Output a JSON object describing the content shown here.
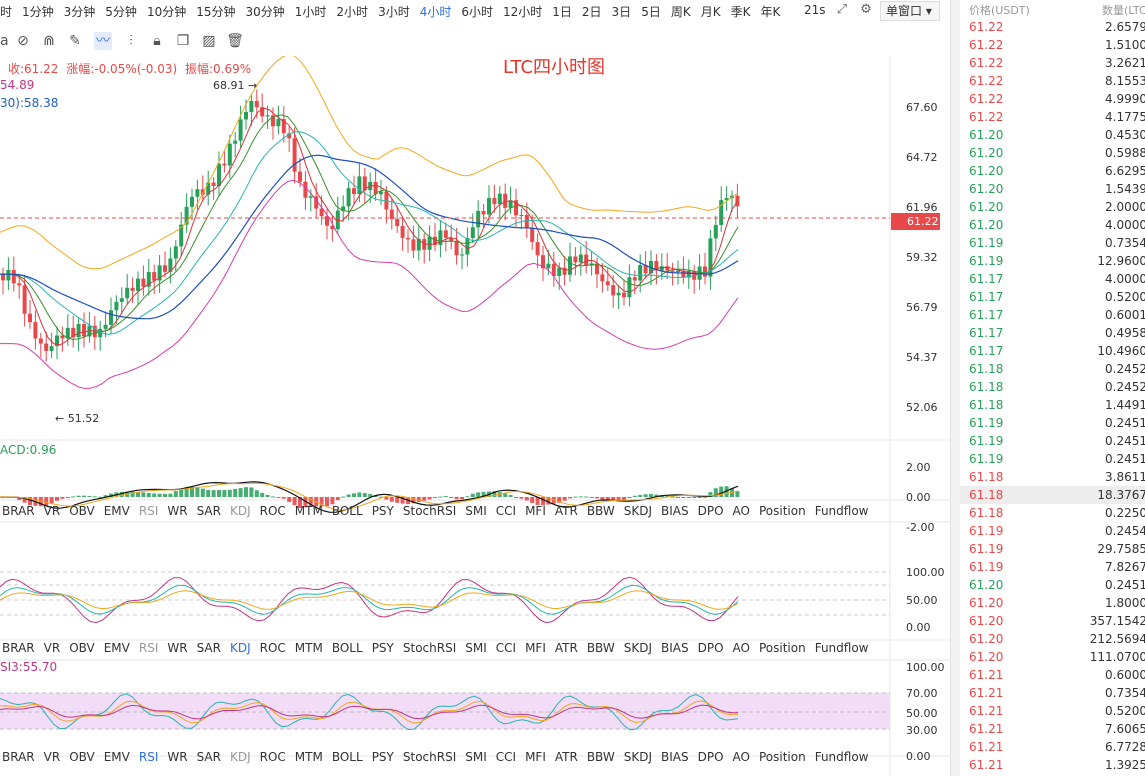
{
  "timeframes": [
    "时",
    "1分钟",
    "3分钟",
    "5分钟",
    "10分钟",
    "15分钟",
    "30分钟",
    "1小时",
    "2小时",
    "3小时",
    "4小时",
    "6小时",
    "12小时",
    "1日",
    "2日",
    "3日",
    "5日",
    "周K",
    "月K",
    "季K",
    "年K"
  ],
  "active_timeframe": "4小时",
  "speed": "21s",
  "window_button": "单窗口",
  "chart_title": "LTC四小时图",
  "legend": {
    "close_label": "收:61.22",
    "change_label": "涨幅:-0.05%(-0.03)",
    "amplitude_label": "振幅:0.69%",
    "ma_a": "54.89",
    "ma_b": "30):58.38"
  },
  "annotations": {
    "high": "68.91",
    "low": "51.52"
  },
  "price_axis": [
    "67.60",
    "64.72",
    "61.96",
    "59.32",
    "56.79",
    "54.37",
    "52.06"
  ],
  "current_price": "61.22",
  "macd_label": "ACD:0.96",
  "macd_axis": [
    "2.00",
    "0.00",
    "-2.00"
  ],
  "osc_axis": [
    "100.00",
    "50.00",
    "0.00"
  ],
  "rsi_label": "SI3:55.70",
  "rsi_axis": [
    "100.00",
    "70.00",
    "50.00",
    "30.00",
    "0.00"
  ],
  "indicator_tabs": [
    "BRAR",
    "VR",
    "OBV",
    "EMV",
    "RSI",
    "WR",
    "SAR",
    "KDJ",
    "ROC",
    "MTM",
    "BOLL",
    "PSY",
    "StochRSI",
    "SMI",
    "CCI",
    "MFI",
    "ATR",
    "BBW",
    "SKDJ",
    "BIAS",
    "DPO",
    "AO",
    "Position",
    "Fundflow"
  ],
  "orderbook": {
    "header_price": "价格(USDT)",
    "header_qty": "数量(LTC)",
    "rows": [
      {
        "price": "61.22",
        "qty": "2.6579",
        "side": "sell"
      },
      {
        "price": "61.22",
        "qty": "1.5100",
        "side": "sell"
      },
      {
        "price": "61.22",
        "qty": "3.2621",
        "side": "sell"
      },
      {
        "price": "61.22",
        "qty": "8.1553",
        "side": "sell"
      },
      {
        "price": "61.22",
        "qty": "4.9990",
        "side": "sell"
      },
      {
        "price": "61.22",
        "qty": "4.1775",
        "side": "sell"
      },
      {
        "price": "61.20",
        "qty": "0.4530",
        "side": "buy"
      },
      {
        "price": "61.20",
        "qty": "0.5988",
        "side": "buy"
      },
      {
        "price": "61.20",
        "qty": "6.6295",
        "side": "buy"
      },
      {
        "price": "61.20",
        "qty": "1.5439",
        "side": "buy"
      },
      {
        "price": "61.20",
        "qty": "2.0000",
        "side": "buy"
      },
      {
        "price": "61.20",
        "qty": "4.0000",
        "side": "buy"
      },
      {
        "price": "61.19",
        "qty": "0.7354",
        "side": "buy"
      },
      {
        "price": "61.19",
        "qty": "12.9600",
        "side": "buy"
      },
      {
        "price": "61.17",
        "qty": "4.0000",
        "side": "buy"
      },
      {
        "price": "61.17",
        "qty": "0.5200",
        "side": "buy"
      },
      {
        "price": "61.17",
        "qty": "0.6001",
        "side": "buy"
      },
      {
        "price": "61.17",
        "qty": "0.4958",
        "side": "buy"
      },
      {
        "price": "61.17",
        "qty": "10.4960",
        "side": "buy"
      },
      {
        "price": "61.18",
        "qty": "0.2452",
        "side": "buy"
      },
      {
        "price": "61.18",
        "qty": "0.2452",
        "side": "buy"
      },
      {
        "price": "61.18",
        "qty": "1.4491",
        "side": "buy"
      },
      {
        "price": "61.19",
        "qty": "0.2451",
        "side": "buy"
      },
      {
        "price": "61.19",
        "qty": "0.2451",
        "side": "buy"
      },
      {
        "price": "61.19",
        "qty": "0.2451",
        "side": "buy"
      },
      {
        "price": "61.18",
        "qty": "3.8611",
        "side": "sell"
      },
      {
        "price": "61.18",
        "qty": "18.3767",
        "side": "sell",
        "highlight": true
      },
      {
        "price": "61.18",
        "qty": "0.2250",
        "side": "sell"
      },
      {
        "price": "61.19",
        "qty": "0.2454",
        "side": "sell"
      },
      {
        "price": "61.19",
        "qty": "29.7585",
        "side": "sell"
      },
      {
        "price": "61.19",
        "qty": "7.8267",
        "side": "sell"
      },
      {
        "price": "61.20",
        "qty": "0.2451",
        "side": "buy"
      },
      {
        "price": "61.20",
        "qty": "1.8000",
        "side": "sell"
      },
      {
        "price": "61.20",
        "qty": "357.1542",
        "side": "sell"
      },
      {
        "price": "61.20",
        "qty": "212.5694",
        "side": "sell"
      },
      {
        "price": "61.20",
        "qty": "111.0700",
        "side": "sell"
      },
      {
        "price": "61.21",
        "qty": "0.6000",
        "side": "sell"
      },
      {
        "price": "61.21",
        "qty": "0.7354",
        "side": "sell"
      },
      {
        "price": "61.21",
        "qty": "0.5200",
        "side": "sell"
      },
      {
        "price": "61.21",
        "qty": "7.6065",
        "side": "sell"
      },
      {
        "price": "61.21",
        "qty": "6.7728",
        "side": "sell"
      },
      {
        "price": "61.21",
        "qty": "1.3925",
        "side": "sell"
      }
    ]
  },
  "colors": {
    "up": "#27a05a",
    "down": "#e8484a",
    "accent": "#2f6fde",
    "title": "#e8342c"
  }
}
